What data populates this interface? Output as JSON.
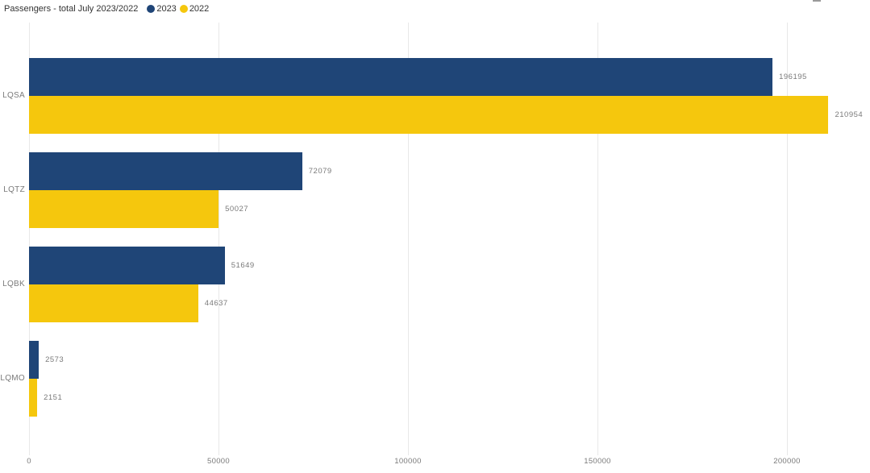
{
  "header": {
    "title": "Passengers - total July 2023/2022"
  },
  "chart_data": {
    "type": "bar",
    "orientation": "horizontal",
    "title": "Passengers - total July 2023/2022",
    "categories": [
      "LQSA",
      "LQTZ",
      "LQBK",
      "LQMO"
    ],
    "series": [
      {
        "name": "2023",
        "color": "#1f4577",
        "values": [
          196195,
          72079,
          51649,
          2573
        ]
      },
      {
        "name": "2022",
        "color": "#f5c70d",
        "values": [
          210954,
          50027,
          44637,
          2151
        ]
      }
    ],
    "data_labels": [
      "196195",
      "210954",
      "72079",
      "50027",
      "51649",
      "44637",
      "2573",
      "2151"
    ],
    "x_tick_labels": [
      "0",
      "50000",
      "100000",
      "150000",
      "200000"
    ],
    "x_tick_values": [
      0,
      50000,
      100000,
      150000,
      200000
    ],
    "xlim": [
      0,
      221900
    ],
    "grid": "vertical",
    "legend_position": "top-left",
    "style": {
      "gridline_color": "#e8e8e8",
      "label_color": "#7a7a7a",
      "title_color": "#333333",
      "background": "#ffffff"
    }
  }
}
